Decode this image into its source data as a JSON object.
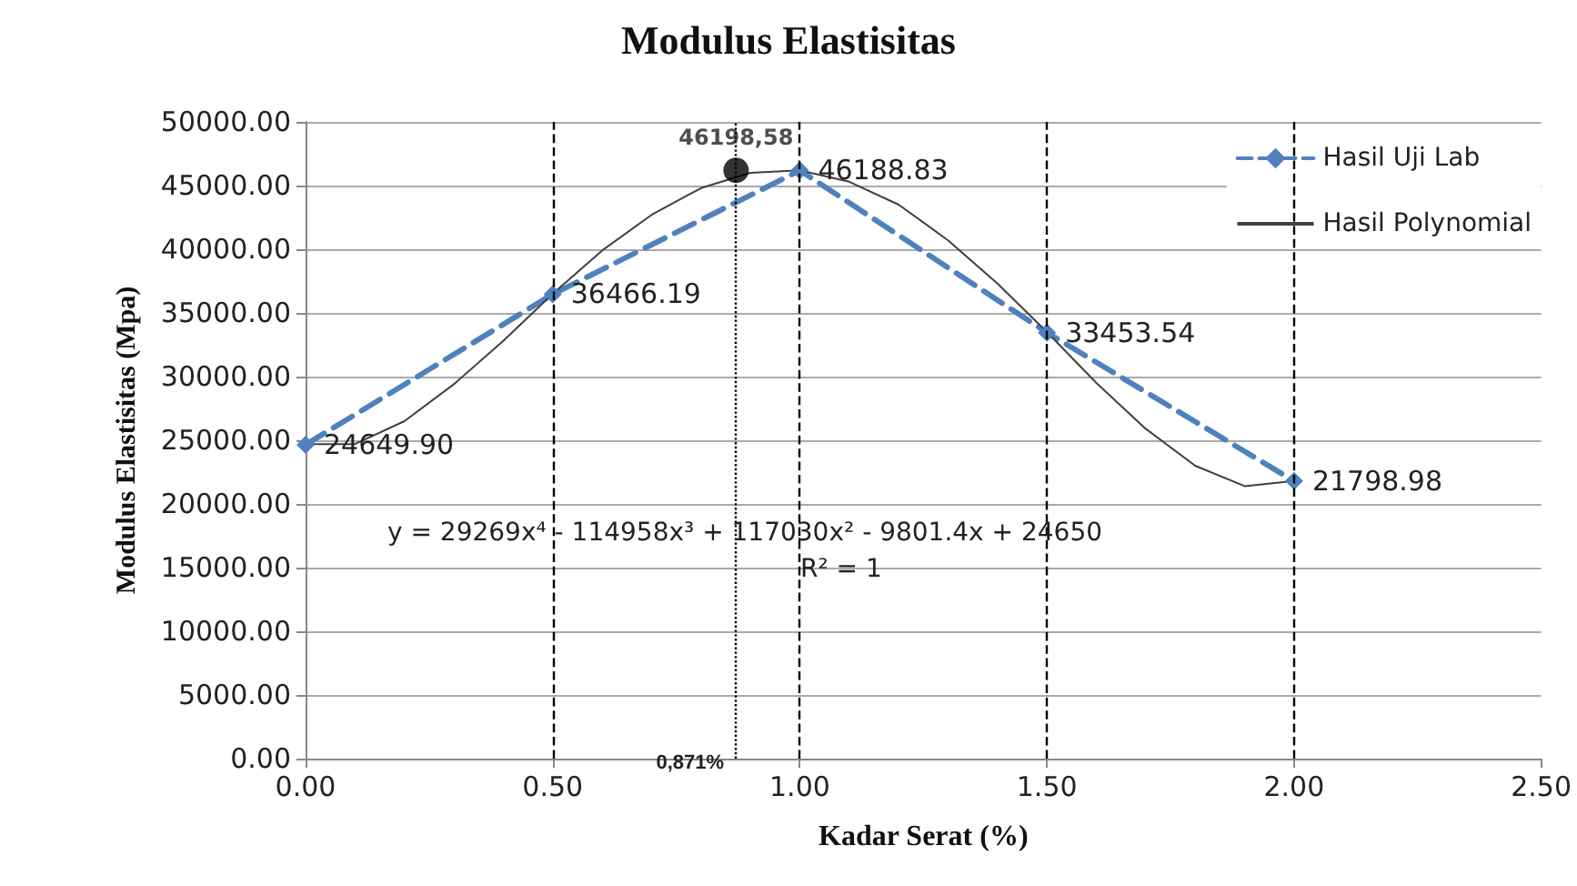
{
  "chart_data": {
    "type": "line",
    "title": "Modulus Elastisitas",
    "xlabel": "Kadar Serat (%)",
    "ylabel": "Modulus Elastisitas (Mpa)",
    "xlim": [
      0,
      2.5
    ],
    "xticks": [
      {
        "value": 0,
        "label": "0.00"
      },
      {
        "value": 0.5,
        "label": "0.50"
      },
      {
        "value": 1,
        "label": "1.00"
      },
      {
        "value": 1.5,
        "label": "1.50"
      },
      {
        "value": 2,
        "label": "2.00"
      },
      {
        "value": 2.5,
        "label": "2.50"
      }
    ],
    "ylim": [
      0,
      50000
    ],
    "yticks": [
      {
        "value": 0,
        "label": "0.00"
      },
      {
        "value": 5000,
        "label": "5000.00"
      },
      {
        "value": 10000,
        "label": "10000.00"
      },
      {
        "value": 15000,
        "label": "15000.00"
      },
      {
        "value": 20000,
        "label": "20000.00"
      },
      {
        "value": 25000,
        "label": "25000.00"
      },
      {
        "value": 30000,
        "label": "30000.00"
      },
      {
        "value": 35000,
        "label": "35000.00"
      },
      {
        "value": 40000,
        "label": "40000.00"
      },
      {
        "value": 45000,
        "label": "45000.00"
      },
      {
        "value": 50000,
        "label": "50000.00"
      }
    ],
    "grid": "y",
    "legend": "top right",
    "series": [
      {
        "name": "Hasil Uji Lab",
        "color": "#4f81bd",
        "line_style": "dashed",
        "marker": "diamond",
        "x": [
          0,
          0.5,
          1,
          1.5,
          2
        ],
        "values": [
          24649.9,
          36466.19,
          46188.83,
          33453.54,
          21798.98
        ],
        "value_labels": [
          "24649.90",
          "36466.19",
          "46188.83",
          "33453.54",
          "21798.98"
        ]
      },
      {
        "name": "Hasil Polynomial",
        "color": "#404040",
        "line_style": "solid",
        "marker": "none",
        "x": [
          0,
          0.1,
          0.2,
          0.3,
          0.4,
          0.5,
          0.6,
          0.7,
          0.8,
          0.9,
          1,
          1.1,
          1.2,
          1.3,
          1.4,
          1.5,
          1.6,
          1.7,
          1.8,
          1.9,
          2
        ],
        "values": [
          24700,
          24700,
          26500,
          29400,
          32800,
          36500,
          39900,
          42700,
          44800,
          46000,
          46200,
          45300,
          43500,
          40700,
          37300,
          33500,
          29500,
          25900,
          23000,
          21400,
          21800
        ]
      },
      {
        "type": "scatter",
        "color": "#000000",
        "marker": "circle",
        "x": [
          0.871
        ],
        "values": [
          46198.58
        ],
        "value_labels": [
          "46198,58"
        ]
      }
    ],
    "ref_lines": [
      {
        "axis": "x",
        "value": 0.5,
        "line_style": "dashed",
        "color": "#000000"
      },
      {
        "axis": "x",
        "value": 1,
        "line_style": "dashed",
        "color": "#000000"
      },
      {
        "axis": "x",
        "value": 1.5,
        "line_style": "dashed",
        "color": "#000000"
      },
      {
        "axis": "x",
        "value": 2,
        "line_style": "dashed",
        "color": "#000000"
      },
      {
        "axis": "x",
        "value": 0.871,
        "line_style": "dotted",
        "color": "#000000",
        "label": "0,871%"
      }
    ],
    "annotations": [
      "y = 29269x⁴ - 114958x³ + 117030x² - 9801.4x + 24650",
      "R² = 1"
    ]
  }
}
